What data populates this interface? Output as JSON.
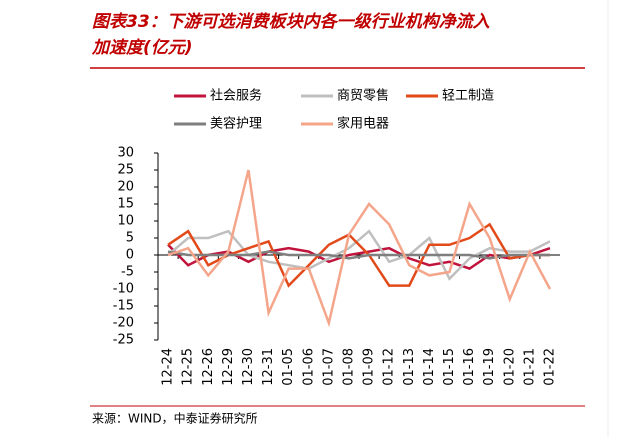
{
  "chart_data": {
    "type": "line",
    "title": "图表33：下游可选消费板块内各一级行业机构净流入加速度(亿元)",
    "source": "来源：WIND，中泰证券研究所",
    "categories": [
      "12-24",
      "12-25",
      "12-26",
      "12-29",
      "12-30",
      "12-31",
      "01-05",
      "01-06",
      "01-07",
      "01-08",
      "01-09",
      "01-12",
      "01-13",
      "01-14",
      "01-15",
      "01-16",
      "01-19",
      "01-20",
      "01-21",
      "01-22"
    ],
    "series": [
      {
        "name": "社会服务",
        "color": "#c0143c",
        "values": [
          3,
          -3,
          0,
          1,
          -2,
          1,
          2,
          1,
          -2,
          0,
          1,
          2,
          -1,
          -3,
          -2,
          -4,
          0,
          -1,
          0,
          2
        ]
      },
      {
        "name": "商贸零售",
        "color": "#bfbfbf",
        "values": [
          0,
          5,
          5,
          7,
          0,
          -2,
          -3,
          -4,
          -1,
          2,
          7,
          -2,
          0,
          5,
          -7,
          -1,
          2,
          1,
          1,
          4
        ]
      },
      {
        "name": "轻工制造",
        "color": "#e24a1a",
        "values": [
          3,
          7,
          -3,
          0,
          2,
          4,
          -9,
          -3,
          3,
          6,
          0,
          -9,
          -9,
          3,
          3,
          5,
          9,
          -1,
          0,
          0
        ]
      },
      {
        "name": "美容护理",
        "color": "#7f7f7f",
        "values": [
          1,
          0,
          0,
          0,
          0,
          1,
          0,
          0,
          0,
          -1,
          0,
          0,
          0,
          0,
          0,
          0,
          -1,
          0,
          0,
          0
        ]
      },
      {
        "name": "家用电器",
        "color": "#f4a58a",
        "values": [
          0,
          2,
          -6,
          1,
          25,
          -17,
          -4,
          -4,
          -20,
          6,
          15,
          9,
          -3,
          -6,
          -5,
          15,
          5,
          -13,
          1,
          -10
        ]
      }
    ],
    "ylim": [
      -25,
      30
    ],
    "yticks": [
      -25,
      -20,
      -15,
      -10,
      -5,
      0,
      5,
      10,
      15,
      20,
      25,
      30
    ]
  }
}
